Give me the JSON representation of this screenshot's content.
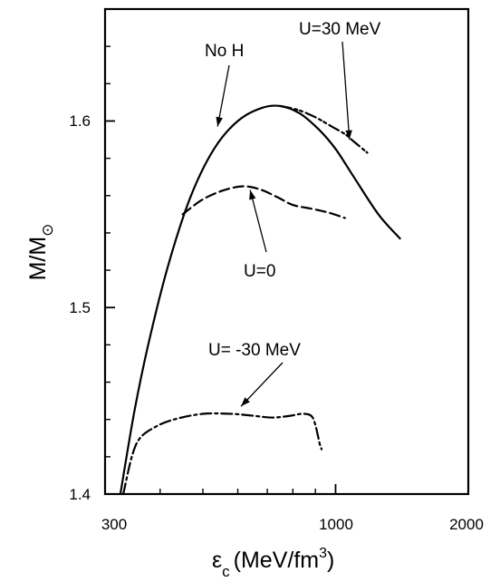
{
  "chart_data": {
    "type": "line",
    "xlabel": "(MeV/fm",
    "xlabel_symbol": "ε",
    "xlabel_subscript": "c",
    "xlabel_superscript": "3",
    "xlabel_close": ")",
    "ylabel": "M/M",
    "ylabel_subscript": "⊙",
    "x_scale": "log",
    "xlim": [
      300,
      2000
    ],
    "ylim": [
      1.4,
      1.66
    ],
    "x_ticks": [
      {
        "value": 300,
        "label": "300"
      },
      {
        "value": 1000,
        "label": "1000"
      },
      {
        "value": 2000,
        "label": "2000"
      }
    ],
    "x_minor_ticks": [
      400,
      500,
      600,
      700,
      800,
      900
    ],
    "y_ticks": [
      {
        "value": 1.4,
        "label": "1.4"
      },
      {
        "value": 1.5,
        "label": "1.5"
      },
      {
        "value": 1.6,
        "label": "1.6"
      }
    ],
    "y_minor_step": 0.02,
    "grid": false,
    "series": [
      {
        "name": "No H",
        "style": "solid",
        "points": [
          [
            325,
            1.4
          ],
          [
            350,
            1.445
          ],
          [
            380,
            1.485
          ],
          [
            420,
            1.525
          ],
          [
            470,
            1.56
          ],
          [
            530,
            1.585
          ],
          [
            600,
            1.6
          ],
          [
            680,
            1.607
          ],
          [
            750,
            1.608
          ],
          [
            830,
            1.604
          ],
          [
            920,
            1.595
          ],
          [
            1000,
            1.585
          ],
          [
            1100,
            1.57
          ],
          [
            1250,
            1.55
          ],
          [
            1400,
            1.537
          ]
        ]
      },
      {
        "name": "U=30 MeV",
        "style": "dashdotdot",
        "points": [
          [
            750,
            1.608
          ],
          [
            820,
            1.606
          ],
          [
            900,
            1.602
          ],
          [
            980,
            1.597
          ],
          [
            1050,
            1.593
          ],
          [
            1100,
            1.589
          ],
          [
            1180,
            1.583
          ]
        ]
      },
      {
        "name": "U=0",
        "style": "dashed",
        "points": [
          [
            450,
            1.55
          ],
          [
            500,
            1.558
          ],
          [
            560,
            1.563
          ],
          [
            620,
            1.565
          ],
          [
            680,
            1.563
          ],
          [
            740,
            1.559
          ],
          [
            800,
            1.555
          ],
          [
            880,
            1.553
          ],
          [
            960,
            1.551
          ],
          [
            1050,
            1.548
          ]
        ]
      },
      {
        "name": "U= -30 MeV",
        "style": "dashdot",
        "points": [
          [
            330,
            1.4
          ],
          [
            345,
            1.42
          ],
          [
            360,
            1.43
          ],
          [
            390,
            1.436
          ],
          [
            430,
            1.44
          ],
          [
            500,
            1.443
          ],
          [
            580,
            1.443
          ],
          [
            650,
            1.442
          ],
          [
            720,
            1.441
          ],
          [
            790,
            1.442
          ],
          [
            840,
            1.443
          ],
          [
            880,
            1.442
          ],
          [
            900,
            1.437
          ],
          [
            920,
            1.427
          ],
          [
            930,
            1.424
          ]
        ]
      }
    ],
    "annotations": [
      {
        "text": "No H",
        "target": {
          "x": 540,
          "y": 1.597
        }
      },
      {
        "text": "U=30 MeV",
        "target": {
          "x": 1075,
          "y": 1.59
        }
      },
      {
        "text": "U=0",
        "target": {
          "x": 640,
          "y": 1.563
        }
      },
      {
        "text": "U= -30 MeV",
        "target": {
          "x": 610,
          "y": 1.447
        }
      }
    ]
  }
}
